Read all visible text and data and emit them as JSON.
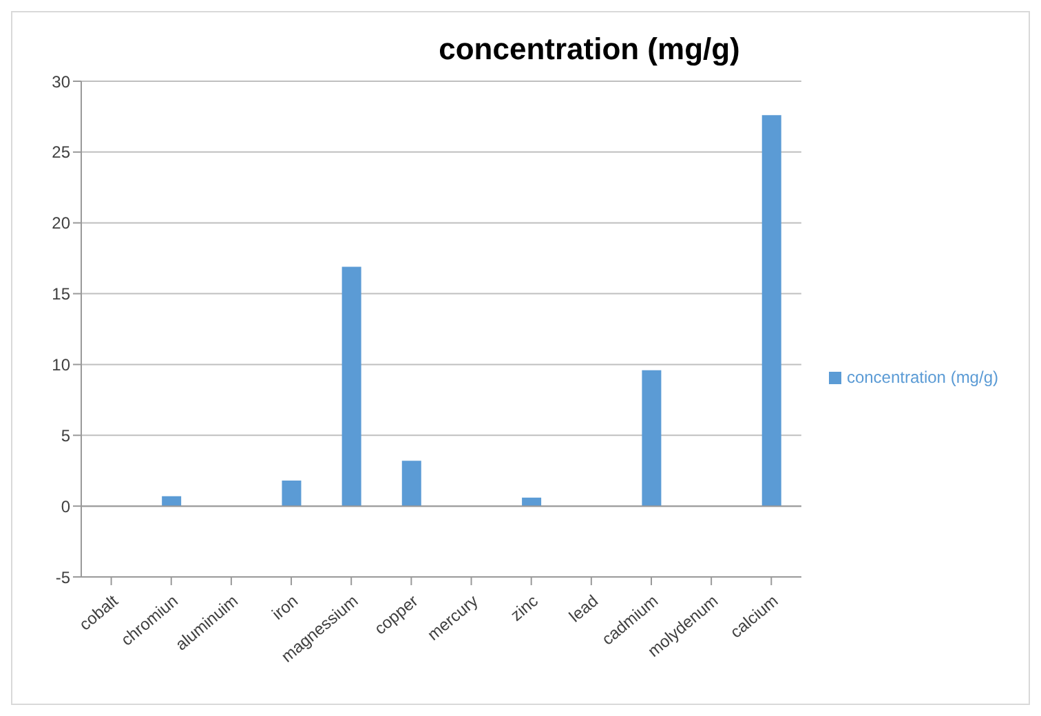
{
  "chart_data": {
    "type": "bar",
    "title": "concentration (mg/g)",
    "categories": [
      "cobalt",
      "chromiun",
      "aluminuim",
      "iron",
      "magnessium",
      "copper",
      "mercury",
      "zinc",
      "lead",
      "cadmium",
      "molydenum",
      "calcium"
    ],
    "series": [
      {
        "name": "concentration (mg/g)",
        "color": "#5b9bd5",
        "values": [
          0,
          0.7,
          0,
          1.8,
          16.9,
          3.2,
          0,
          0.6,
          0,
          9.6,
          0,
          27.6
        ]
      }
    ],
    "ylim": [
      -5,
      30
    ],
    "yticks": [
      -5,
      0,
      5,
      10,
      15,
      20,
      25,
      30
    ],
    "grid": "y",
    "legend": "right"
  }
}
